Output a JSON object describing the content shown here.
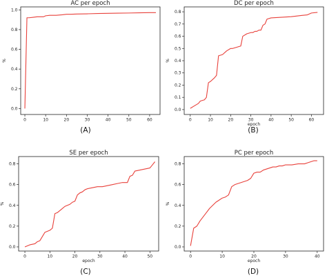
{
  "chart_data": [
    {
      "type": "line",
      "panel_label": "(A)",
      "title": "AC per epoch",
      "xlabel": "",
      "ylabel": "%",
      "xlim": [
        -2,
        65
      ],
      "ylim": [
        -0.06,
        1.03
      ],
      "xticks": [
        0,
        10,
        20,
        30,
        40,
        50,
        60
      ],
      "yticks": [
        0.0,
        0.2,
        0.4,
        0.6,
        0.8,
        1.0
      ],
      "grid": false,
      "line_color": "#e8403a",
      "x": [
        0,
        1,
        2,
        4,
        6,
        9,
        10,
        12,
        15,
        18,
        20,
        22,
        25,
        30,
        35,
        40,
        45,
        50,
        55,
        60,
        63
      ],
      "y": [
        0.0,
        0.92,
        0.92,
        0.925,
        0.93,
        0.93,
        0.94,
        0.945,
        0.945,
        0.95,
        0.955,
        0.955,
        0.958,
        0.96,
        0.963,
        0.965,
        0.967,
        0.968,
        0.97,
        0.972,
        0.972
      ]
    },
    {
      "type": "line",
      "panel_label": "(B)",
      "title": "DC per epoch",
      "xlabel": "epoch",
      "ylabel": "%",
      "xlim": [
        -3,
        66
      ],
      "ylim": [
        -0.04,
        0.84
      ],
      "xticks": [
        0,
        10,
        20,
        30,
        40,
        50,
        60
      ],
      "yticks": [
        0.0,
        0.1,
        0.2,
        0.3,
        0.4,
        0.5,
        0.6,
        0.7,
        0.8
      ],
      "grid": false,
      "line_color": "#e8403a",
      "x": [
        0,
        2,
        4,
        5,
        7,
        8,
        9,
        10,
        12,
        13,
        14,
        16,
        18,
        20,
        21,
        23,
        25,
        26,
        28,
        30,
        31,
        32,
        33,
        34,
        35,
        36,
        37,
        38,
        40,
        45,
        50,
        55,
        58,
        60,
        63
      ],
      "y": [
        0.01,
        0.03,
        0.05,
        0.07,
        0.08,
        0.1,
        0.22,
        0.23,
        0.26,
        0.28,
        0.44,
        0.45,
        0.48,
        0.5,
        0.5,
        0.51,
        0.52,
        0.6,
        0.62,
        0.63,
        0.63,
        0.64,
        0.64,
        0.65,
        0.65,
        0.69,
        0.7,
        0.74,
        0.75,
        0.755,
        0.76,
        0.77,
        0.775,
        0.79,
        0.795
      ]
    },
    {
      "type": "line",
      "panel_label": "(C)",
      "title": "SE per epoch",
      "xlabel": "epoch",
      "ylabel": "%",
      "xlim": [
        -2.5,
        53.5
      ],
      "ylim": [
        -0.04,
        0.87
      ],
      "xticks": [
        0,
        10,
        20,
        30,
        40,
        50
      ],
      "yticks": [
        0.0,
        0.2,
        0.4,
        0.6,
        0.8
      ],
      "grid": false,
      "line_color": "#e8403a",
      "x": [
        0,
        1,
        2,
        4,
        5,
        6,
        7,
        8,
        9,
        10,
        11,
        12,
        13,
        14,
        15,
        16,
        18,
        19,
        20,
        21,
        22,
        23,
        24,
        25,
        27,
        29,
        31,
        33,
        35,
        37,
        39,
        40,
        41,
        42,
        43,
        44,
        46,
        48,
        50,
        51,
        52
      ],
      "y": [
        0.0,
        0.01,
        0.02,
        0.03,
        0.05,
        0.06,
        0.1,
        0.14,
        0.15,
        0.16,
        0.18,
        0.32,
        0.33,
        0.35,
        0.37,
        0.39,
        0.41,
        0.43,
        0.44,
        0.5,
        0.52,
        0.53,
        0.55,
        0.56,
        0.57,
        0.58,
        0.58,
        0.59,
        0.6,
        0.61,
        0.62,
        0.62,
        0.62,
        0.68,
        0.69,
        0.73,
        0.74,
        0.75,
        0.76,
        0.79,
        0.82
      ]
    },
    {
      "type": "line",
      "panel_label": "(D)",
      "title": "PC per epoch",
      "xlabel": "epoch",
      "ylabel": "%",
      "xlim": [
        -2,
        42
      ],
      "ylim": [
        -0.04,
        0.87
      ],
      "xticks": [
        0,
        10,
        20,
        30,
        40
      ],
      "yticks": [
        0.0,
        0.2,
        0.4,
        0.6,
        0.8
      ],
      "grid": false,
      "line_color": "#e8403a",
      "x": [
        0,
        1,
        2,
        3,
        4,
        5,
        6,
        7,
        8,
        9,
        10,
        11,
        12,
        13,
        14,
        15,
        16,
        18,
        19,
        20,
        21,
        22,
        23,
        24,
        25,
        26,
        27,
        28,
        29,
        30,
        32,
        34,
        36,
        37,
        38,
        39,
        40
      ],
      "y": [
        0.01,
        0.18,
        0.2,
        0.25,
        0.29,
        0.33,
        0.37,
        0.4,
        0.43,
        0.45,
        0.47,
        0.48,
        0.5,
        0.58,
        0.6,
        0.61,
        0.62,
        0.64,
        0.66,
        0.71,
        0.72,
        0.72,
        0.74,
        0.75,
        0.76,
        0.77,
        0.77,
        0.78,
        0.78,
        0.79,
        0.79,
        0.8,
        0.8,
        0.81,
        0.82,
        0.83,
        0.83
      ]
    }
  ]
}
